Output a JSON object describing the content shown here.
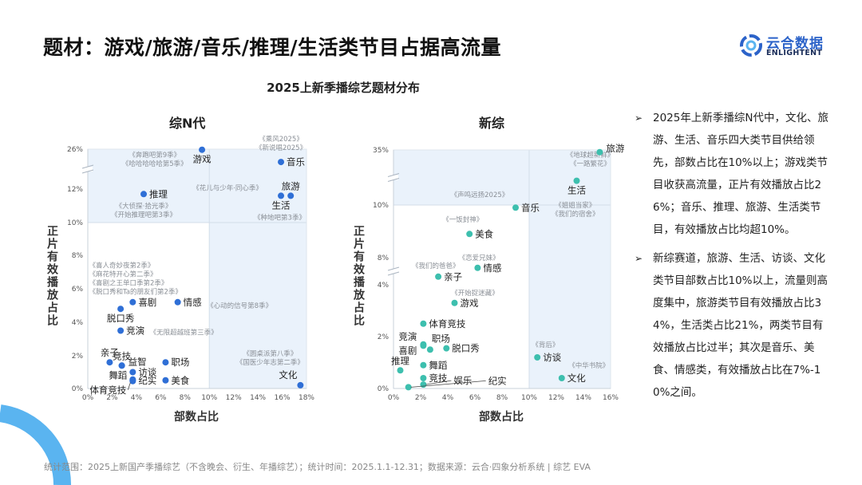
{
  "header": {
    "title": "题材：游戏/旅游/音乐/推理/生活类节目占据高流量",
    "logo_cn": "云合数据",
    "logo_en": "ENLIGHTENT"
  },
  "subtitle": "2025上新季播综艺题材分布",
  "colors": {
    "left_dot": "#2f6fd6",
    "right_dot": "#3dbfae",
    "shade": "#eaf2fb",
    "arc": "#5ab4f0"
  },
  "chart_data": [
    {
      "type": "scatter",
      "title": "综N代",
      "xlabel": "部数占比",
      "ylabel": "正片有效播放占比",
      "x_ticks": [
        "0%",
        "2%",
        "4%",
        "6%",
        "8%",
        "10%",
        "12%",
        "14%",
        "16%",
        "18%"
      ],
      "xlim": [
        0,
        18
      ],
      "y_ticks": [
        0,
        2,
        4,
        6,
        8,
        10,
        12,
        26
      ],
      "y_tick_labels": [
        "0%",
        "2%",
        "4%",
        "6%",
        "8%",
        "10%",
        "12%",
        "26%"
      ],
      "y_axis_break": "between 12% and 26%",
      "highlight_threshold": {
        "x": 10,
        "y": 10
      },
      "points": [
        {
          "label": "游戏",
          "x": 9.4,
          "y": 25.8,
          "pos": "below"
        },
        {
          "label": "音乐",
          "x": 15.9,
          "y": 21.5,
          "pos": "right"
        },
        {
          "label": "旅游",
          "x": 16.7,
          "y": 11.6,
          "pos": "above"
        },
        {
          "label": "生活",
          "x": 15.9,
          "y": 11.6,
          "pos": "below"
        },
        {
          "label": "推理",
          "x": 4.6,
          "y": 11.7,
          "pos": "right"
        },
        {
          "label": "喜剧",
          "x": 3.7,
          "y": 5.2,
          "pos": "right"
        },
        {
          "label": "情感",
          "x": 7.4,
          "y": 5.2,
          "pos": "right"
        },
        {
          "label": "脱口秀",
          "x": 2.7,
          "y": 4.8,
          "pos": "below"
        },
        {
          "label": "竞演",
          "x": 2.7,
          "y": 3.5,
          "pos": "right"
        },
        {
          "label": "亲子",
          "x": 1.8,
          "y": 1.6,
          "pos": "above"
        },
        {
          "label": "竞技",
          "x": 2.8,
          "y": 1.4,
          "pos": "above"
        },
        {
          "label": "益智",
          "x": 2.8,
          "y": 1.4,
          "pos": "belowright"
        },
        {
          "label": "访谈",
          "x": 3.7,
          "y": 1.0,
          "pos": "right"
        },
        {
          "label": "纪实",
          "x": 3.7,
          "y": 0.5,
          "pos": "right"
        },
        {
          "label": "舞蹈",
          "x": 3.7,
          "y": 0.55,
          "pos": "left"
        },
        {
          "label": "体育竞技",
          "x": 3.7,
          "y": 0.45,
          "pos": "farleft"
        },
        {
          "label": "职场",
          "x": 6.4,
          "y": 1.6,
          "pos": "right"
        },
        {
          "label": "美食",
          "x": 6.4,
          "y": 0.5,
          "pos": "right"
        },
        {
          "label": "文化",
          "x": 17.5,
          "y": 0.2,
          "pos": "aboveleft"
        }
      ],
      "annotations": [
        {
          "lines": [
            "《乘风2025》",
            "《新说唱2025》"
          ],
          "x": 15.9,
          "y": 29.6,
          "anchor": "middle"
        },
        {
          "lines": [
            "《奔跑吧第9季》",
            "《哈哈哈哈哈第5季》"
          ],
          "x": 5.9,
          "y": 24.0,
          "anchor": "middle"
        },
        {
          "lines": [
            "《花儿与少年·同心季》"
          ],
          "x": 11.5,
          "y": 12.4,
          "anchor": "middle"
        },
        {
          "lines": [
            "《大侦探·拾光季》",
            "《开始推理吧第3季》"
          ],
          "x": 4.6,
          "y": 11.0,
          "anchor": "middle"
        },
        {
          "lines": [
            "《种地吧第3季》"
          ],
          "x": 15.8,
          "y": 10.3,
          "anchor": "middle"
        },
        {
          "lines": [
            "《喜人奇妙夜第2季》",
            "《麻花特开心第二季》",
            "《喜剧之王单口季第2季》",
            "《脱口秀和Ta的朋友们第2季》"
          ],
          "x": 0.1,
          "y": 7.4,
          "anchor": "start"
        },
        {
          "lines": [
            "《心动的信号第8季》"
          ],
          "x": 8.0,
          "y": 5.0,
          "anchor": "start"
        },
        {
          "lines": [
            "《无限超越班第三季》"
          ],
          "x": 5.1,
          "y": 3.4,
          "anchor": "start"
        },
        {
          "lines": [
            "《圆桌派第八季》",
            "《国医少年志第二季》"
          ],
          "x": 15.0,
          "y": 2.15,
          "anchor": "middle"
        }
      ]
    },
    {
      "type": "scatter",
      "title": "新综",
      "xlabel": "部数占比",
      "ylabel": "正片有效播放占比",
      "x_ticks": [
        "0%",
        "2%",
        "4%",
        "6%",
        "8%",
        "10%",
        "12%",
        "14%",
        "16%"
      ],
      "xlim": [
        0,
        16
      ],
      "y_ticks": [
        0,
        2,
        4,
        8,
        10,
        35
      ],
      "y_tick_labels": [
        "0%",
        "2%",
        "4%",
        "8%",
        "10%",
        "35%"
      ],
      "y_axis_break": "between 4% and 8%, between 10% and 35%",
      "highlight_threshold": {
        "x": 10,
        "y": 10
      },
      "points": [
        {
          "label": "旅游",
          "x": 15.2,
          "y": 34,
          "pos": "belowright"
        },
        {
          "label": "生活",
          "x": 13.5,
          "y": 21,
          "pos": "below"
        },
        {
          "label": "音乐",
          "x": 9.0,
          "y": 9.9,
          "pos": "right"
        },
        {
          "label": "美食",
          "x": 5.6,
          "y": 8.9,
          "pos": "right"
        },
        {
          "label": "情感",
          "x": 6.2,
          "y": 6.5,
          "pos": "right"
        },
        {
          "label": "亲子",
          "x": 3.3,
          "y": 5.2,
          "pos": "right"
        },
        {
          "label": "游戏",
          "x": 4.5,
          "y": 3.3,
          "pos": "right"
        },
        {
          "label": "体育竞技",
          "x": 2.2,
          "y": 2.5,
          "pos": "right"
        },
        {
          "label": "竞演",
          "x": 2.2,
          "y": 1.7,
          "pos": "leftup"
        },
        {
          "label": "喜剧",
          "x": 2.2,
          "y": 1.65,
          "pos": "leftdown"
        },
        {
          "label": "职场",
          "x": 2.7,
          "y": 1.5,
          "pos": "aboveright"
        },
        {
          "label": "脱口秀",
          "x": 3.9,
          "y": 1.55,
          "pos": "right"
        },
        {
          "label": "舞蹈",
          "x": 2.2,
          "y": 0.9,
          "pos": "right"
        },
        {
          "label": "推理",
          "x": 0.5,
          "y": 0.7,
          "pos": "above"
        },
        {
          "label": "竞技",
          "x": 2.2,
          "y": 0.4,
          "pos": "right"
        },
        {
          "label": "娱乐",
          "x": 2.2,
          "y": 0.15,
          "pos": "farright"
        },
        {
          "label": "纪实",
          "x": 1.1,
          "y": 0.05,
          "pos": "farright2"
        },
        {
          "label": "访谈",
          "x": 10.6,
          "y": 1.2,
          "pos": "right"
        },
        {
          "label": "文化",
          "x": 12.4,
          "y": 0.4,
          "pos": "right"
        }
      ],
      "annotations": [
        {
          "lines": [
            "《地球超新鲜》",
            "《一路繁花》"
          ],
          "x": 14.5,
          "y": 32.8,
          "anchor": "middle"
        },
        {
          "lines": [
            "《声鸣远扬2025》"
          ],
          "x": 6.35,
          "y": 14.7,
          "anchor": "middle"
        },
        {
          "lines": [
            "《姐姐当家》",
            "《我们的宿舍》"
          ],
          "x": 13.4,
          "y": 10.0,
          "anchor": "middle"
        },
        {
          "lines": [
            "《一饭封神》"
          ],
          "x": 5.1,
          "y": 9.45,
          "anchor": "middle"
        },
        {
          "lines": [
            "《恋爱兄妹》"
          ],
          "x": 6.3,
          "y": 8.0,
          "anchor": "middle"
        },
        {
          "lines": [
            "《我们的爸爸》"
          ],
          "x": 3.1,
          "y": 6.8,
          "anchor": "middle"
        },
        {
          "lines": [
            "《开始捉迷藏》"
          ],
          "x": 6.0,
          "y": 3.7,
          "anchor": "middle"
        },
        {
          "lines": [
            "《背后》"
          ],
          "x": 11.2,
          "y": 1.7,
          "anchor": "middle"
        },
        {
          "lines": [
            "《中华书院》"
          ],
          "x": 14.4,
          "y": 0.9,
          "anchor": "middle"
        }
      ]
    }
  ],
  "bullets": [
    "2025年上新季播综N代中，文化、旅游、生活、音乐四大类节目供给领先，部数占比在10%以上；游戏类节目收获高流量，正片有效播放占比26%；音乐、推理、旅游、生活类节目，有效播放占比均超10%。",
    "新综赛道，旅游、生活、访谈、文化类节目部数占比10%以上，流量则高度集中，旅游类节目有效播放占比34%，生活类占比21%，两类节目有效播放占比过半；其次是音乐、美食、情感类，有效播放占比在7%-10%之间。"
  ],
  "bullet_mark": "➢",
  "footer": "统计范围：2025上新国产季播综艺（不含晚会、衍生、年播综艺）；统计时间：2025.1.1-12.31；数据来源：云合·四象分析系统 | 综艺 EVA"
}
